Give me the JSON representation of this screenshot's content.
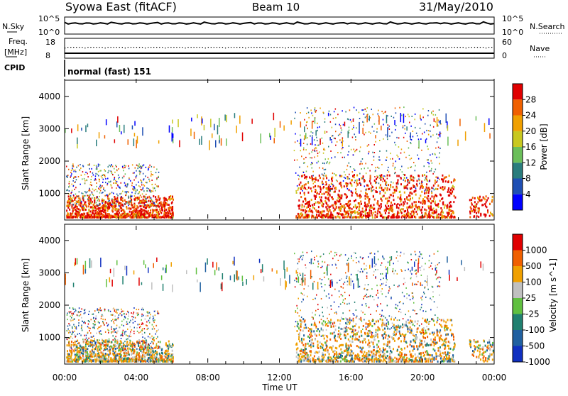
{
  "header": {
    "station": "Syowa East (fitACF)",
    "beam": "Beam 10",
    "date": "31/May/2010"
  },
  "panels": {
    "noise": {
      "left_label": "N.Sky",
      "right_label": "N.Search",
      "left_ticks": [
        "10^5",
        "10^0"
      ],
      "right_ticks": [
        "10^5",
        "10^0"
      ]
    },
    "freq": {
      "left_label_line1": "Freq.",
      "left_label_line2": "[MHz]",
      "right_label": "Nave",
      "left_ticks": [
        "18",
        "8"
      ],
      "right_ticks": [
        "60",
        "0"
      ],
      "cpid_label": "CPID"
    },
    "cpid_text": "normal (fast) 151"
  },
  "chart_data": [
    {
      "type": "heatmap",
      "title": "",
      "xlabel": "",
      "ylabel": "Slant Range [km]",
      "ylim": [
        180,
        4500
      ],
      "xlim": [
        0,
        24
      ],
      "y_ticks": [
        1000,
        2000,
        3000,
        4000
      ],
      "colorbar": {
        "label": "Power [dB]",
        "ticks": [
          4,
          8,
          12,
          16,
          20,
          24,
          28
        ],
        "colors": [
          "#0000ff",
          "#1f4fb4",
          "#2a7d7d",
          "#6bbf5a",
          "#c8c820",
          "#f0a000",
          "#f06000",
          "#e00000"
        ]
      }
    },
    {
      "type": "heatmap",
      "title": "",
      "xlabel": "Time UT",
      "ylabel": "Slant Range [km]",
      "ylim": [
        180,
        4500
      ],
      "xlim": [
        0,
        24
      ],
      "y_ticks": [
        1000,
        2000,
        3000,
        4000
      ],
      "x_ticks": [
        "00:00",
        "04:00",
        "08:00",
        "12:00",
        "16:00",
        "20:00",
        "00:00"
      ],
      "colorbar": {
        "label": "Velocity [m s^-1]",
        "ticks": [
          1000,
          500,
          100,
          25,
          -25,
          -100,
          -500,
          -1000
        ],
        "colors": [
          "#1030c0",
          "#2060a0",
          "#208070",
          "#60c040",
          "#c0c0c0",
          "#f0a000",
          "#f06000",
          "#e00000"
        ]
      }
    }
  ]
}
